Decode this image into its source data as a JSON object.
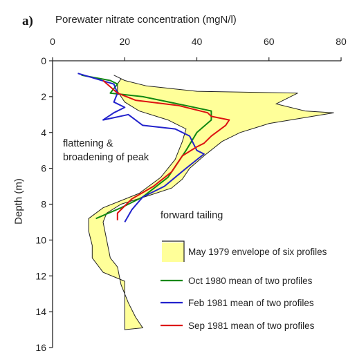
{
  "chart_data": {
    "type": "line",
    "panel_label": "a)",
    "xlabel": "Porewater nitrate concentration (mgN/l)",
    "ylabel": "Depth (m)",
    "xlim": [
      0,
      80
    ],
    "ylim": [
      0,
      16
    ],
    "y_inverted": true,
    "x_axis_position": "top",
    "xticks": [
      "0",
      "20",
      "40",
      "60",
      "80"
    ],
    "yticks": [
      "0",
      "2",
      "4",
      "6",
      "8",
      "10",
      "12",
      "14",
      "16"
    ],
    "grid": false,
    "annotations": [
      {
        "id": "flattening",
        "lines": [
          "flattening &",
          "broadening of peak"
        ]
      },
      {
        "id": "tailing",
        "lines": [
          "forward tailing"
        ]
      }
    ],
    "envelope": {
      "name": "May 1979 envelope of six profiles",
      "color": "#ffff99",
      "left": [
        [
          19,
          1.0
        ],
        [
          18,
          1.3
        ],
        [
          18,
          1.7
        ],
        [
          20,
          2.3
        ],
        [
          24,
          2.8
        ],
        [
          32,
          3.3
        ],
        [
          37,
          3.8
        ],
        [
          36,
          4.5
        ],
        [
          34,
          5.5
        ],
        [
          30,
          6.5
        ],
        [
          24,
          7.4
        ],
        [
          14,
          8.2
        ],
        [
          10,
          8.8
        ],
        [
          10,
          9.5
        ],
        [
          11,
          10.3
        ],
        [
          11,
          11.0
        ],
        [
          14,
          11.8
        ],
        [
          20,
          12.3
        ],
        [
          20,
          13.0
        ],
        [
          20,
          14.0
        ],
        [
          20,
          15.0
        ]
      ],
      "right": [
        [
          17,
          0.8
        ],
        [
          20,
          1.1
        ],
        [
          26,
          1.4
        ],
        [
          40,
          1.7
        ],
        [
          68,
          1.8
        ],
        [
          62,
          2.4
        ],
        [
          70,
          2.8
        ],
        [
          78,
          2.9
        ],
        [
          60,
          3.5
        ],
        [
          52,
          4.0
        ],
        [
          47,
          4.5
        ],
        [
          42,
          5.3
        ],
        [
          38,
          6.0
        ],
        [
          36,
          6.6
        ],
        [
          33,
          7.1
        ],
        [
          27,
          7.5
        ],
        [
          19,
          8.0
        ],
        [
          15,
          8.5
        ],
        [
          14,
          9.0
        ],
        [
          15,
          10.0
        ],
        [
          16,
          11.0
        ],
        [
          18,
          11.5
        ],
        [
          19,
          12.5
        ],
        [
          21,
          13.5
        ],
        [
          23,
          14.3
        ],
        [
          25,
          14.9
        ]
      ]
    },
    "series": [
      {
        "name": "Oct 1980 mean of two profiles",
        "color": "#118811",
        "points": [
          [
            8,
            0.8
          ],
          [
            16,
            1.1
          ],
          [
            18,
            1.3
          ],
          [
            16,
            1.8
          ],
          [
            25,
            2.0
          ],
          [
            37,
            2.5
          ],
          [
            44,
            2.8
          ],
          [
            44,
            3.3
          ],
          [
            40,
            4.0
          ],
          [
            37,
            5.0
          ],
          [
            32,
            6.5
          ],
          [
            25,
            7.6
          ],
          [
            19,
            8.2
          ],
          [
            12,
            8.8
          ]
        ]
      },
      {
        "name": "Feb 1981 mean of two profiles",
        "color": "#2222cc",
        "points": [
          [
            7,
            0.7
          ],
          [
            12,
            1.0
          ],
          [
            17,
            1.3
          ],
          [
            18,
            1.8
          ],
          [
            17,
            2.3
          ],
          [
            20,
            2.6
          ],
          [
            17,
            2.9
          ],
          [
            14,
            3.3
          ],
          [
            21,
            3.0
          ],
          [
            25,
            3.6
          ],
          [
            34,
            3.8
          ],
          [
            38,
            4.2
          ],
          [
            40,
            5.0
          ],
          [
            42,
            5.2
          ],
          [
            37,
            6.0
          ],
          [
            31,
            7.0
          ],
          [
            25,
            7.6
          ],
          [
            22,
            8.3
          ],
          [
            20,
            9.0
          ]
        ]
      },
      {
        "name": "Sep 1981 mean of two profiles",
        "color": "#dd1111",
        "points": [
          [
            14,
            1.1
          ],
          [
            18,
            1.8
          ],
          [
            23,
            2.2
          ],
          [
            35,
            2.5
          ],
          [
            43,
            2.9
          ],
          [
            44,
            3.1
          ],
          [
            49,
            3.3
          ],
          [
            48,
            3.6
          ],
          [
            44,
            4.2
          ],
          [
            42,
            4.6
          ],
          [
            40,
            4.8
          ],
          [
            36,
            5.3
          ],
          [
            33,
            6.2
          ],
          [
            28,
            7.0
          ],
          [
            22,
            7.7
          ],
          [
            18,
            8.5
          ],
          [
            18,
            8.9
          ]
        ]
      }
    ]
  }
}
